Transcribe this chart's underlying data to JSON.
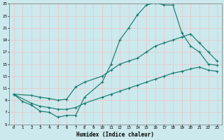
{
  "xlabel": "Humidex (Indice chaleur)",
  "bg_color": "#cce9ee",
  "grid_color": "#e8c8c8",
  "line_color": "#1a7a6e",
  "line1_x": [
    0,
    1,
    2,
    3,
    4,
    5,
    6,
    7,
    8,
    10,
    11,
    12,
    13,
    14,
    15,
    16,
    17,
    18,
    19,
    20,
    21,
    22,
    23
  ],
  "line1_y": [
    10.0,
    8.8,
    8.2,
    7.2,
    7.0,
    6.2,
    6.5,
    6.5,
    9.5,
    12.0,
    15.0,
    19.0,
    21.0,
    23.2,
    24.8,
    25.2,
    24.8,
    24.8,
    20.2,
    18.0,
    17.0,
    15.0,
    14.8
  ],
  "line2_x": [
    0,
    2,
    3,
    4,
    5,
    6,
    7,
    8,
    10,
    11,
    12,
    13,
    14,
    15,
    16,
    17,
    18,
    19,
    20,
    21,
    22,
    23
  ],
  "line2_y": [
    10.0,
    9.8,
    9.5,
    9.3,
    9.0,
    9.2,
    11.2,
    12.0,
    13.0,
    14.0,
    15.0,
    15.5,
    16.0,
    17.0,
    18.0,
    18.5,
    19.0,
    19.5,
    20.0,
    18.5,
    17.0,
    15.5
  ],
  "line3_x": [
    0,
    2,
    3,
    4,
    5,
    6,
    7,
    8,
    10,
    11,
    12,
    13,
    14,
    15,
    16,
    17,
    18,
    19,
    20,
    21,
    22,
    23
  ],
  "line3_y": [
    10.0,
    8.5,
    8.0,
    7.8,
    7.5,
    7.5,
    7.8,
    8.5,
    9.5,
    10.0,
    10.5,
    11.0,
    11.5,
    12.0,
    12.5,
    13.0,
    13.5,
    13.8,
    14.2,
    14.5,
    14.0,
    13.8
  ],
  "xlim": [
    -0.5,
    23.5
  ],
  "ylim": [
    5,
    25
  ],
  "yticks": [
    5,
    7,
    9,
    11,
    13,
    15,
    17,
    19,
    21,
    23,
    25
  ],
  "xticks": [
    0,
    1,
    2,
    3,
    4,
    5,
    6,
    7,
    8,
    9,
    10,
    11,
    12,
    13,
    14,
    15,
    16,
    17,
    18,
    19,
    20,
    21,
    22,
    23
  ]
}
